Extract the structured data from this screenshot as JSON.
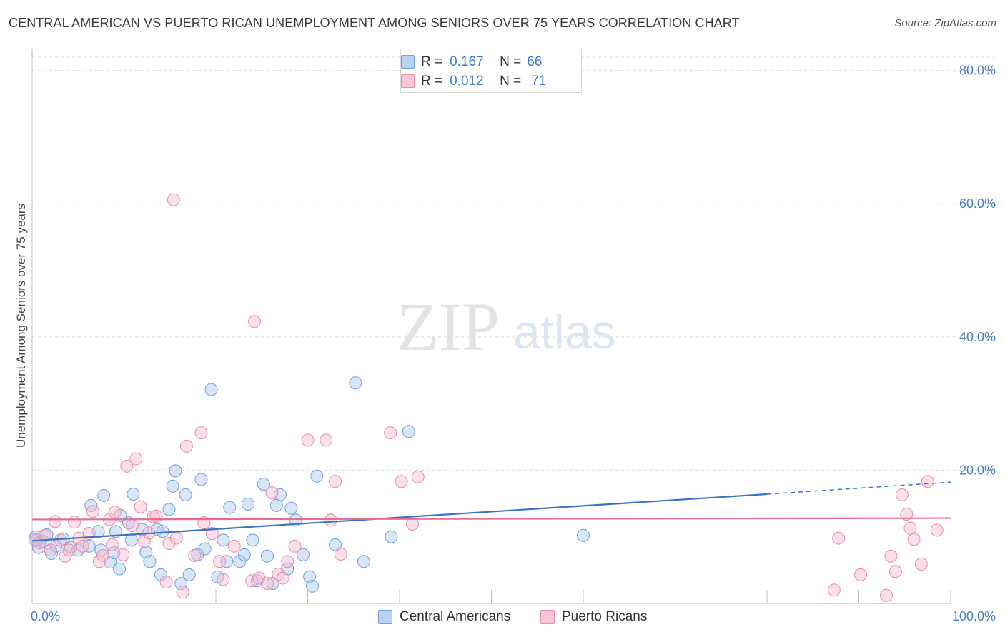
{
  "title": "CENTRAL AMERICAN VS PUERTO RICAN UNEMPLOYMENT AMONG SENIORS OVER 75 YEARS CORRELATION CHART",
  "source": "Source: ZipAtlas.com",
  "watermark": {
    "zip": "ZIP",
    "atlas": "atlas"
  },
  "legend": {
    "r_label": "R =",
    "n_label": "N =",
    "rows": [
      {
        "series": "Central Americans",
        "r": "0.167",
        "n": "66",
        "fill": "#b8d2f2",
        "stroke": "#6e9fdc"
      },
      {
        "series": "Puerto Ricans",
        "r": "0.012",
        "n": "71",
        "fill": "#f8c6d6",
        "stroke": "#e88aa8"
      }
    ]
  },
  "bottom_legend": [
    {
      "label": "Central Americans",
      "fill": "#b8d2f2",
      "stroke": "#6e9fdc"
    },
    {
      "label": "Puerto Ricans",
      "fill": "#f8c6d6",
      "stroke": "#e88aa8"
    }
  ],
  "colors": {
    "blue_point_fill": "rgba(168,200,240,0.45)",
    "blue_point_stroke": "#6e9fdc",
    "pink_point_fill": "rgba(246,186,206,0.45)",
    "pink_point_stroke": "#e88aa8",
    "blue_line": "#3a74c6",
    "pink_line": "#e46d97",
    "grid": "#d9d9d9",
    "axis_text": "#4a7cc7"
  },
  "chart_data": {
    "type": "scatter",
    "title": "CENTRAL AMERICAN VS PUERTO RICAN UNEMPLOYMENT AMONG SENIORS OVER 75 YEARS CORRELATION CHART",
    "xlabel": "",
    "ylabel": "Unemployment Among Seniors over 75 years",
    "xlim": [
      0,
      100
    ],
    "ylim": [
      0,
      82
    ],
    "x_tick_labels": [
      {
        "value": 0,
        "label": "0.0%"
      },
      {
        "value": 100,
        "label": "100.0%"
      }
    ],
    "x_minor_ticks": [
      10,
      20,
      30,
      40,
      50,
      60,
      70,
      80,
      90,
      100
    ],
    "y_ticks": [
      {
        "value": 20,
        "label": "20.0%"
      },
      {
        "value": 40,
        "label": "40.0%"
      },
      {
        "value": 60,
        "label": "60.0%"
      },
      {
        "value": 80,
        "label": "80.0%"
      }
    ],
    "grid": true,
    "legend_position": "top-center",
    "series": [
      {
        "name": "Central Americans",
        "r": 0.167,
        "n": 66,
        "trend": {
          "x": [
            0,
            80
          ],
          "y": [
            9.4,
            16.4
          ],
          "dashed_extension_to": [
            100,
            18.2
          ]
        },
        "points": [
          [
            0.4,
            10.0
          ],
          [
            0.7,
            8.4
          ],
          [
            1.2,
            9.3
          ],
          [
            1.6,
            10.3
          ],
          [
            2.1,
            7.5
          ],
          [
            2.6,
            8.6
          ],
          [
            3.4,
            9.7
          ],
          [
            4.2,
            8.4
          ],
          [
            5.0,
            8.0
          ],
          [
            6.2,
            8.6
          ],
          [
            7.2,
            10.8
          ],
          [
            6.4,
            14.7
          ],
          [
            7.8,
            16.2
          ],
          [
            7.5,
            8.0
          ],
          [
            8.5,
            6.2
          ],
          [
            8.9,
            7.6
          ],
          [
            9.1,
            10.8
          ],
          [
            9.5,
            5.2
          ],
          [
            9.6,
            13.2
          ],
          [
            10.5,
            12.1
          ],
          [
            10.8,
            9.5
          ],
          [
            11.0,
            16.4
          ],
          [
            12.0,
            11.1
          ],
          [
            12.4,
            7.7
          ],
          [
            12.8,
            6.3
          ],
          [
            13.6,
            11.1
          ],
          [
            14.2,
            10.8
          ],
          [
            14.0,
            4.3
          ],
          [
            14.9,
            14.1
          ],
          [
            15.3,
            17.6
          ],
          [
            15.6,
            19.9
          ],
          [
            16.2,
            3.0
          ],
          [
            16.7,
            16.3
          ],
          [
            17.1,
            4.3
          ],
          [
            18.0,
            7.3
          ],
          [
            18.4,
            18.6
          ],
          [
            18.8,
            8.2
          ],
          [
            19.5,
            32.1
          ],
          [
            20.2,
            4.0
          ],
          [
            20.8,
            9.5
          ],
          [
            21.2,
            6.3
          ],
          [
            21.5,
            14.4
          ],
          [
            22.6,
            6.3
          ],
          [
            23.1,
            7.3
          ],
          [
            23.5,
            14.9
          ],
          [
            24.0,
            9.5
          ],
          [
            24.5,
            3.4
          ],
          [
            25.2,
            17.9
          ],
          [
            25.6,
            7.1
          ],
          [
            26.2,
            3.0
          ],
          [
            26.6,
            14.7
          ],
          [
            27.0,
            16.3
          ],
          [
            27.8,
            5.2
          ],
          [
            28.2,
            14.3
          ],
          [
            28.7,
            12.5
          ],
          [
            29.5,
            7.3
          ],
          [
            30.2,
            4.0
          ],
          [
            30.5,
            2.6
          ],
          [
            31.0,
            19.1
          ],
          [
            33.0,
            8.8
          ],
          [
            35.2,
            33.1
          ],
          [
            36.1,
            6.3
          ],
          [
            39.1,
            10.0
          ],
          [
            41.0,
            25.8
          ],
          [
            60.0,
            10.2
          ],
          [
            0.5,
            9.5
          ]
        ]
      },
      {
        "name": "Puerto Ricans",
        "r": 0.012,
        "n": 71,
        "trend": {
          "x": [
            0,
            100
          ],
          "y": [
            12.6,
            12.8
          ]
        },
        "points": [
          [
            0.3,
            9.6
          ],
          [
            0.8,
            9.1
          ],
          [
            1.4,
            10.2
          ],
          [
            2.0,
            8.0
          ],
          [
            2.5,
            12.3
          ],
          [
            3.1,
            9.5
          ],
          [
            3.6,
            7.1
          ],
          [
            4.0,
            8.0
          ],
          [
            4.6,
            12.2
          ],
          [
            5.1,
            9.8
          ],
          [
            5.5,
            8.6
          ],
          [
            6.2,
            10.5
          ],
          [
            6.6,
            13.8
          ],
          [
            7.3,
            6.3
          ],
          [
            7.7,
            7.2
          ],
          [
            8.4,
            12.6
          ],
          [
            8.7,
            8.8
          ],
          [
            9.0,
            13.7
          ],
          [
            9.9,
            7.3
          ],
          [
            10.3,
            20.6
          ],
          [
            10.9,
            11.7
          ],
          [
            11.3,
            21.7
          ],
          [
            11.8,
            14.5
          ],
          [
            12.2,
            9.3
          ],
          [
            12.7,
            10.6
          ],
          [
            13.2,
            13.0
          ],
          [
            13.5,
            13.1
          ],
          [
            14.6,
            3.2
          ],
          [
            14.9,
            9.0
          ],
          [
            15.4,
            60.6
          ],
          [
            15.7,
            9.8
          ],
          [
            16.4,
            1.7
          ],
          [
            16.8,
            23.6
          ],
          [
            17.7,
            7.2
          ],
          [
            18.4,
            25.6
          ],
          [
            18.7,
            12.1
          ],
          [
            19.6,
            10.5
          ],
          [
            20.4,
            6.3
          ],
          [
            20.8,
            3.6
          ],
          [
            22.0,
            8.6
          ],
          [
            23.9,
            3.4
          ],
          [
            24.2,
            42.3
          ],
          [
            24.7,
            3.8
          ],
          [
            25.6,
            3.0
          ],
          [
            26.1,
            16.6
          ],
          [
            26.8,
            4.4
          ],
          [
            27.3,
            3.8
          ],
          [
            27.8,
            6.3
          ],
          [
            28.6,
            8.6
          ],
          [
            30.0,
            24.5
          ],
          [
            32.0,
            24.5
          ],
          [
            32.5,
            12.5
          ],
          [
            33.0,
            18.3
          ],
          [
            33.6,
            7.4
          ],
          [
            39.0,
            25.6
          ],
          [
            40.2,
            18.3
          ],
          [
            41.4,
            11.9
          ],
          [
            42.0,
            19.0
          ],
          [
            87.3,
            2.0
          ],
          [
            87.8,
            9.8
          ],
          [
            90.2,
            4.3
          ],
          [
            93.0,
            1.2
          ],
          [
            93.5,
            7.1
          ],
          [
            94.0,
            4.8
          ],
          [
            94.7,
            16.3
          ],
          [
            95.2,
            13.4
          ],
          [
            95.6,
            11.3
          ],
          [
            96.0,
            9.6
          ],
          [
            96.8,
            5.9
          ],
          [
            97.5,
            18.3
          ],
          [
            98.5,
            11.0
          ]
        ]
      }
    ]
  }
}
